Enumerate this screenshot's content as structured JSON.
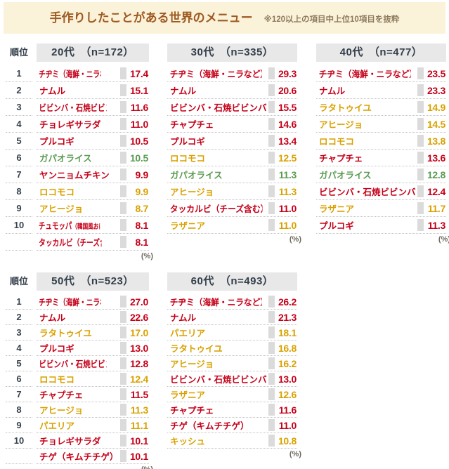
{
  "banner": {
    "title": "手作りしたことがある世界のメニュー",
    "note": "※120以上の項目中上位10項目を抜粋"
  },
  "labels": {
    "rank_header": "順位",
    "percent": "(%)"
  },
  "palette": {
    "red": "#C50018",
    "gold": "#D9A100",
    "green": "#5B9A50",
    "rank": "#39434F",
    "header_bg": "#E8E8E8",
    "banner_bg": "#FBF2DA",
    "title_brown": "#9E5A22",
    "bar_gray": "#DBDBDB"
  },
  "chart_data": {
    "type": "table",
    "title": "手作りしたことがある世界のメニュー",
    "note": "※120以上の項目中上位10項目を抜粋",
    "unit": "%",
    "layout_rows": [
      [
        0,
        1,
        2
      ],
      [
        3,
        4
      ]
    ],
    "tables": [
      {
        "group": "20代",
        "n": 172,
        "header": "20代　（n=172）",
        "rows": [
          {
            "rank": "1",
            "label": "チヂミ（海鮮・ニラなど）",
            "value": "17.4",
            "color": "red"
          },
          {
            "rank": "2",
            "label": "ナムル",
            "value": "15.1",
            "color": "red"
          },
          {
            "rank": "3",
            "label": "ビビンバ・石焼ビビンバ",
            "value": "11.6",
            "color": "red"
          },
          {
            "rank": "4",
            "label": "チョレギサラダ",
            "value": "11.0",
            "color": "red"
          },
          {
            "rank": "5",
            "label": "プルコギ",
            "value": "10.5",
            "color": "red"
          },
          {
            "rank": "6",
            "label": "ガパオライス",
            "value": "10.5",
            "color": "green"
          },
          {
            "rank": "7",
            "label": "ヤンニョムチキン",
            "value": "9.9",
            "color": "red"
          },
          {
            "rank": "8",
            "label": "ロコモコ",
            "value": "9.9",
            "color": "gold"
          },
          {
            "rank": "9",
            "label": "アヒージョ",
            "value": "8.7",
            "color": "gold"
          },
          {
            "rank": "10",
            "label": "チュモッパ",
            "label_small": "（韓国風おにぎり）",
            "value": "8.1",
            "color": "red"
          },
          {
            "rank": "",
            "label": "タッカルビ（チーズ含む）",
            "value": "8.1",
            "color": "red"
          }
        ]
      },
      {
        "group": "30代",
        "n": 335,
        "header": "30代　（n=335）",
        "rows": [
          {
            "rank": "1",
            "label": "チヂミ（海鮮・ニラなど）",
            "value": "29.3",
            "color": "red"
          },
          {
            "rank": "2",
            "label": "ナムル",
            "value": "20.6",
            "color": "red"
          },
          {
            "rank": "3",
            "label": "ビビンバ・石焼ビビンバ",
            "value": "15.5",
            "color": "red"
          },
          {
            "rank": "4",
            "label": "チャプチェ",
            "value": "14.6",
            "color": "red"
          },
          {
            "rank": "5",
            "label": "プルコギ",
            "value": "13.4",
            "color": "red"
          },
          {
            "rank": "6",
            "label": "ロコモコ",
            "value": "12.5",
            "color": "gold"
          },
          {
            "rank": "7",
            "label": "ガパオライス",
            "value": "11.3",
            "color": "green"
          },
          {
            "rank": "8",
            "label": "アヒージョ",
            "value": "11.3",
            "color": "gold"
          },
          {
            "rank": "9",
            "label": "タッカルビ（チーズ含む）",
            "value": "11.0",
            "color": "red"
          },
          {
            "rank": "10",
            "label": "ラザニア",
            "value": "11.0",
            "color": "gold"
          }
        ]
      },
      {
        "group": "40代",
        "n": 477,
        "header": "40代　（n=477）",
        "rows": [
          {
            "rank": "1",
            "label": "チヂミ（海鮮・ニラなど）",
            "value": "23.5",
            "color": "red"
          },
          {
            "rank": "2",
            "label": "ナムル",
            "value": "23.3",
            "color": "red"
          },
          {
            "rank": "3",
            "label": "ラタトゥイユ",
            "value": "14.9",
            "color": "gold"
          },
          {
            "rank": "4",
            "label": "アヒージョ",
            "value": "14.5",
            "color": "gold"
          },
          {
            "rank": "5",
            "label": "ロコモコ",
            "value": "13.8",
            "color": "gold"
          },
          {
            "rank": "6",
            "label": "チャプチェ",
            "value": "13.6",
            "color": "red"
          },
          {
            "rank": "7",
            "label": "ガパオライス",
            "value": "12.8",
            "color": "green"
          },
          {
            "rank": "8",
            "label": "ビビンバ・石焼ビビンバ",
            "value": "12.4",
            "color": "red"
          },
          {
            "rank": "9",
            "label": "ラザニア",
            "value": "11.7",
            "color": "gold"
          },
          {
            "rank": "10",
            "label": "プルコギ",
            "value": "11.3",
            "color": "red"
          }
        ]
      },
      {
        "group": "50代",
        "n": 523,
        "header": "50代　（n=523）",
        "rows": [
          {
            "rank": "1",
            "label": "チヂミ（海鮮・ニラなど）",
            "value": "27.0",
            "color": "red"
          },
          {
            "rank": "2",
            "label": "ナムル",
            "value": "22.6",
            "color": "red"
          },
          {
            "rank": "3",
            "label": "ラタトゥイユ",
            "value": "17.0",
            "color": "gold"
          },
          {
            "rank": "4",
            "label": "プルコギ",
            "value": "13.0",
            "color": "red"
          },
          {
            "rank": "5",
            "label": "ビビンバ・石焼ビビンバ",
            "value": "12.8",
            "color": "red"
          },
          {
            "rank": "6",
            "label": "ロコモコ",
            "value": "12.4",
            "color": "gold"
          },
          {
            "rank": "7",
            "label": "チャプチェ",
            "value": "11.5",
            "color": "red"
          },
          {
            "rank": "8",
            "label": "アヒージョ",
            "value": "11.3",
            "color": "gold"
          },
          {
            "rank": "9",
            "label": "パエリア",
            "value": "11.1",
            "color": "gold"
          },
          {
            "rank": "10",
            "label": "チョレギサラダ",
            "value": "10.1",
            "color": "red"
          },
          {
            "rank": "",
            "label": "チゲ（キムチチゲ）",
            "value": "10.1",
            "color": "red"
          }
        ]
      },
      {
        "group": "60代",
        "n": 493,
        "header": "60代　（n=493）",
        "rows": [
          {
            "rank": "1",
            "label": "チヂミ（海鮮・ニラなど）",
            "value": "26.2",
            "color": "red"
          },
          {
            "rank": "2",
            "label": "ナムル",
            "value": "21.3",
            "color": "red"
          },
          {
            "rank": "3",
            "label": "パエリア",
            "value": "18.1",
            "color": "gold"
          },
          {
            "rank": "4",
            "label": "ラタトゥイユ",
            "value": "16.8",
            "color": "gold"
          },
          {
            "rank": "5",
            "label": "アヒージョ",
            "value": "16.2",
            "color": "gold"
          },
          {
            "rank": "6",
            "label": "ビビンバ・石焼ビビンバ",
            "value": "13.0",
            "color": "red"
          },
          {
            "rank": "7",
            "label": "ラザニア",
            "value": "12.6",
            "color": "gold"
          },
          {
            "rank": "8",
            "label": "チャプチェ",
            "value": "11.6",
            "color": "red"
          },
          {
            "rank": "9",
            "label": "チゲ（キムチチゲ）",
            "value": "11.0",
            "color": "red"
          },
          {
            "rank": "10",
            "label": "キッシュ",
            "value": "10.8",
            "color": "gold"
          }
        ]
      }
    ]
  }
}
